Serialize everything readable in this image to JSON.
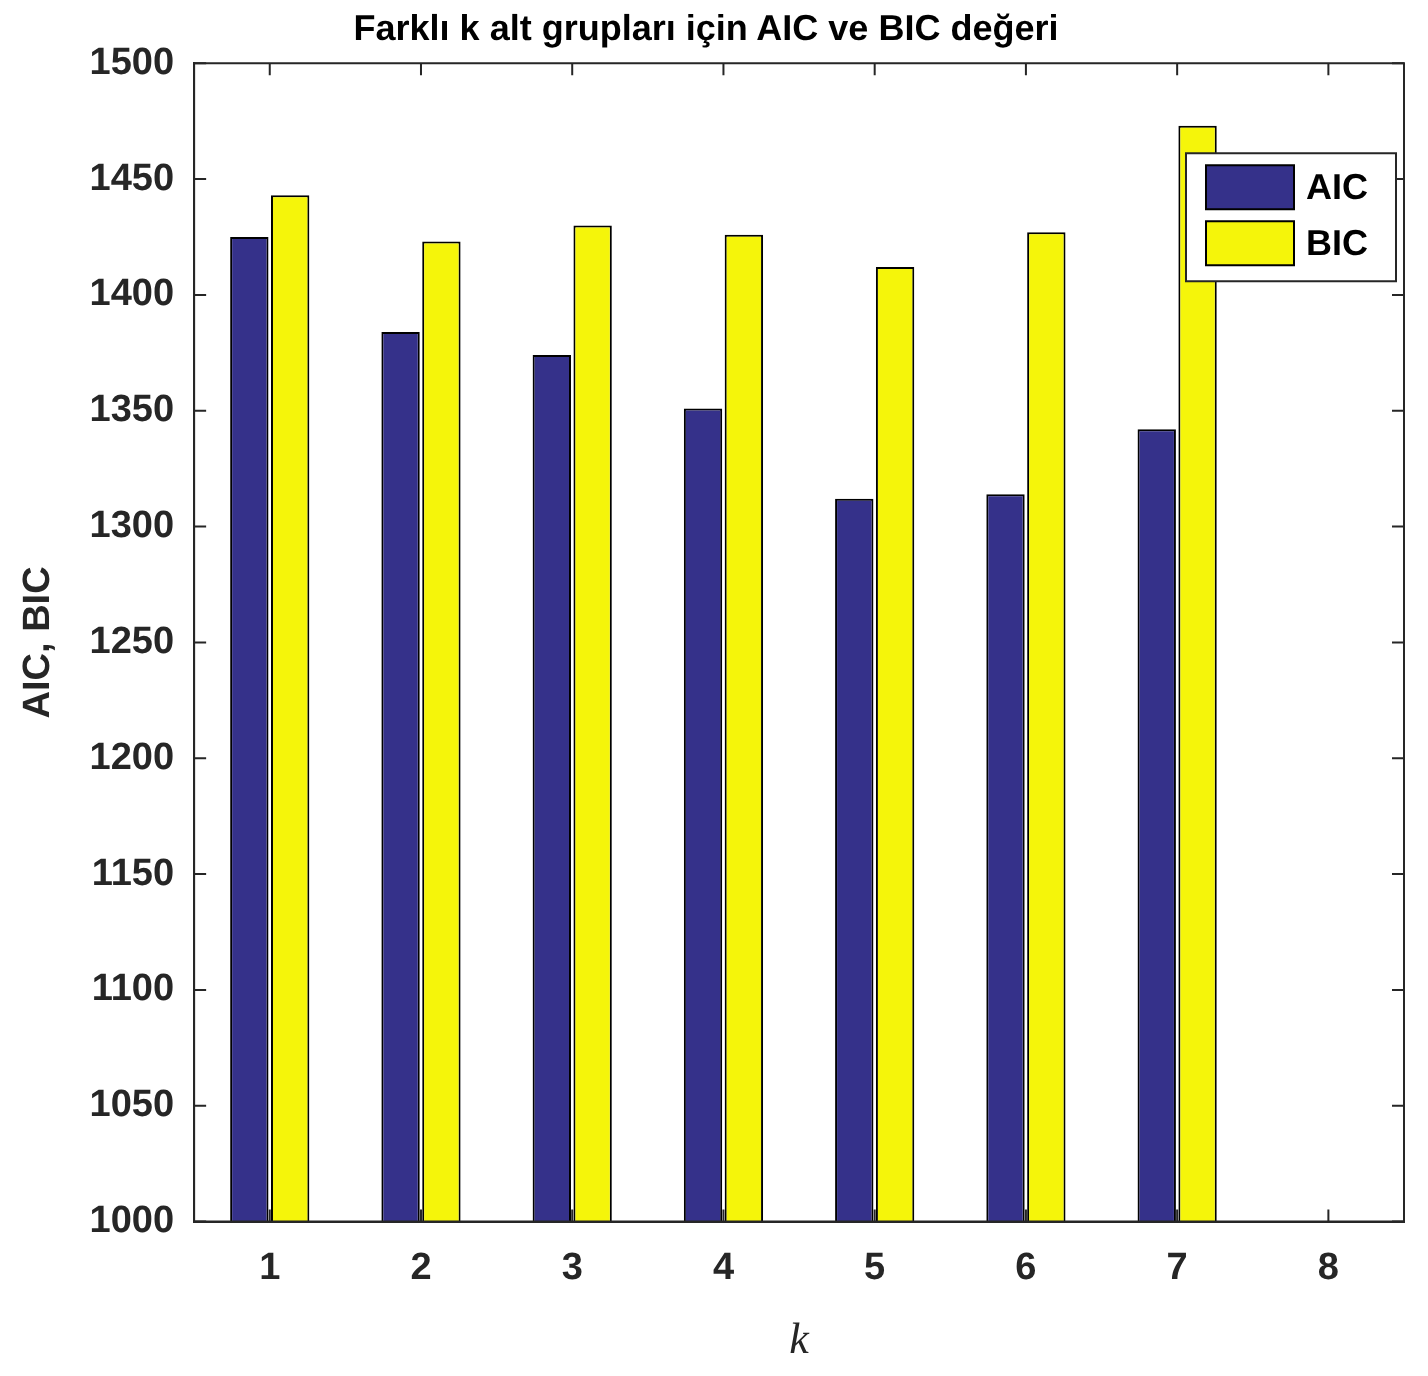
{
  "chart_data": {
    "type": "bar",
    "title": "Farklı k alt grupları için AIC ve BIC değeri",
    "xlabel": "k",
    "ylabel": "AIC, BIC",
    "categories": [
      "1",
      "2",
      "3",
      "4",
      "5",
      "6",
      "7",
      "8"
    ],
    "series": [
      {
        "name": "AIC",
        "color": "#35318a",
        "values": [
          1425,
          1384,
          1374,
          1351,
          1312,
          1314,
          1342,
          null
        ]
      },
      {
        "name": "BIC",
        "color": "#f5f50a",
        "values": [
          1443,
          1423,
          1430,
          1426,
          1412,
          1427,
          1473,
          null
        ]
      }
    ],
    "ylim": [
      1000,
      1500
    ],
    "yticks": [
      1000,
      1050,
      1100,
      1150,
      1200,
      1250,
      1300,
      1350,
      1400,
      1450,
      1500
    ],
    "grid": false,
    "legend": "top right"
  }
}
